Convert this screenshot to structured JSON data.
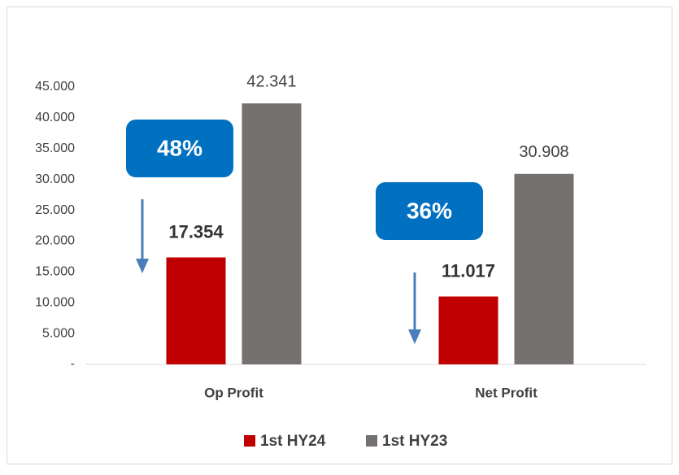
{
  "chart_data": {
    "type": "bar",
    "categories": [
      "Op Profit",
      "Net Profit"
    ],
    "series": [
      {
        "name": "1st HY24",
        "color": "#c00000",
        "values": [
          17354,
          11017
        ],
        "value_labels": [
          "17.354",
          "11.017"
        ]
      },
      {
        "name": "1st HY23",
        "color": "#767171",
        "values": [
          42341,
          30908
        ],
        "value_labels": [
          "42.341",
          "30.908"
        ]
      }
    ],
    "ylim": [
      0,
      45000
    ],
    "yticks": [
      {
        "value": 0,
        "label": "-"
      },
      {
        "value": 5000,
        "label": "5.000"
      },
      {
        "value": 10000,
        "label": "10.000"
      },
      {
        "value": 15000,
        "label": "15.000"
      },
      {
        "value": 20000,
        "label": "20.000"
      },
      {
        "value": 25000,
        "label": "25.000"
      },
      {
        "value": 30000,
        "label": "30.000"
      },
      {
        "value": 35000,
        "label": "35.000"
      },
      {
        "value": 40000,
        "label": "40.000"
      },
      {
        "value": 45000,
        "label": "45.000"
      }
    ],
    "grid": false,
    "legend": "bottom",
    "annotations": [
      {
        "text": "48%"
      },
      {
        "text": "36%"
      }
    ]
  }
}
